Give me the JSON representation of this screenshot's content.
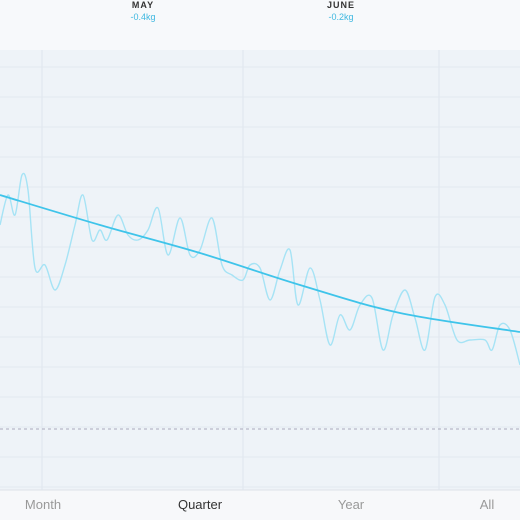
{
  "header": {
    "months": [
      {
        "name": "MAY",
        "change": "-0.4kg"
      },
      {
        "name": "JUNE",
        "change": "-0.2kg"
      }
    ]
  },
  "tabs": {
    "items": [
      "Month",
      "Quarter",
      "Year",
      "All"
    ]
  },
  "chart_data": {
    "type": "line",
    "xlim": [
      0,
      520
    ],
    "ylim": [
      0,
      440
    ],
    "series": [
      {
        "color": "#a6e3f5",
        "x": [
          0,
          8,
          15,
          22,
          28,
          35,
          45,
          55,
          65,
          75,
          83,
          92,
          100,
          107,
          118,
          128,
          138,
          148,
          158,
          168,
          180,
          190,
          200,
          212,
          222,
          232,
          243,
          250,
          260,
          270,
          280,
          290,
          298,
          310,
          320,
          330,
          340,
          350,
          360,
          372,
          383,
          393,
          405,
          415,
          425,
          435,
          445,
          457,
          470,
          485,
          492,
          500,
          510,
          520
        ],
        "values": [
          265,
          295,
          275,
          315,
          300,
          222,
          225,
          200,
          225,
          265,
          295,
          250,
          260,
          250,
          275,
          255,
          250,
          260,
          282,
          235,
          272,
          235,
          240,
          272,
          225,
          215,
          210,
          225,
          222,
          190,
          220,
          240,
          185,
          222,
          190,
          145,
          175,
          160,
          185,
          192,
          140,
          175,
          200,
          172,
          140,
          193,
          185,
          150,
          150,
          150,
          140,
          165,
          160,
          125
        ]
      },
      {
        "color": "#3fc4ea",
        "x": [
          0,
          100,
          200,
          300,
          400,
          520
        ],
        "values": [
          295,
          265,
          237,
          205,
          177,
          158
        ]
      }
    ]
  }
}
